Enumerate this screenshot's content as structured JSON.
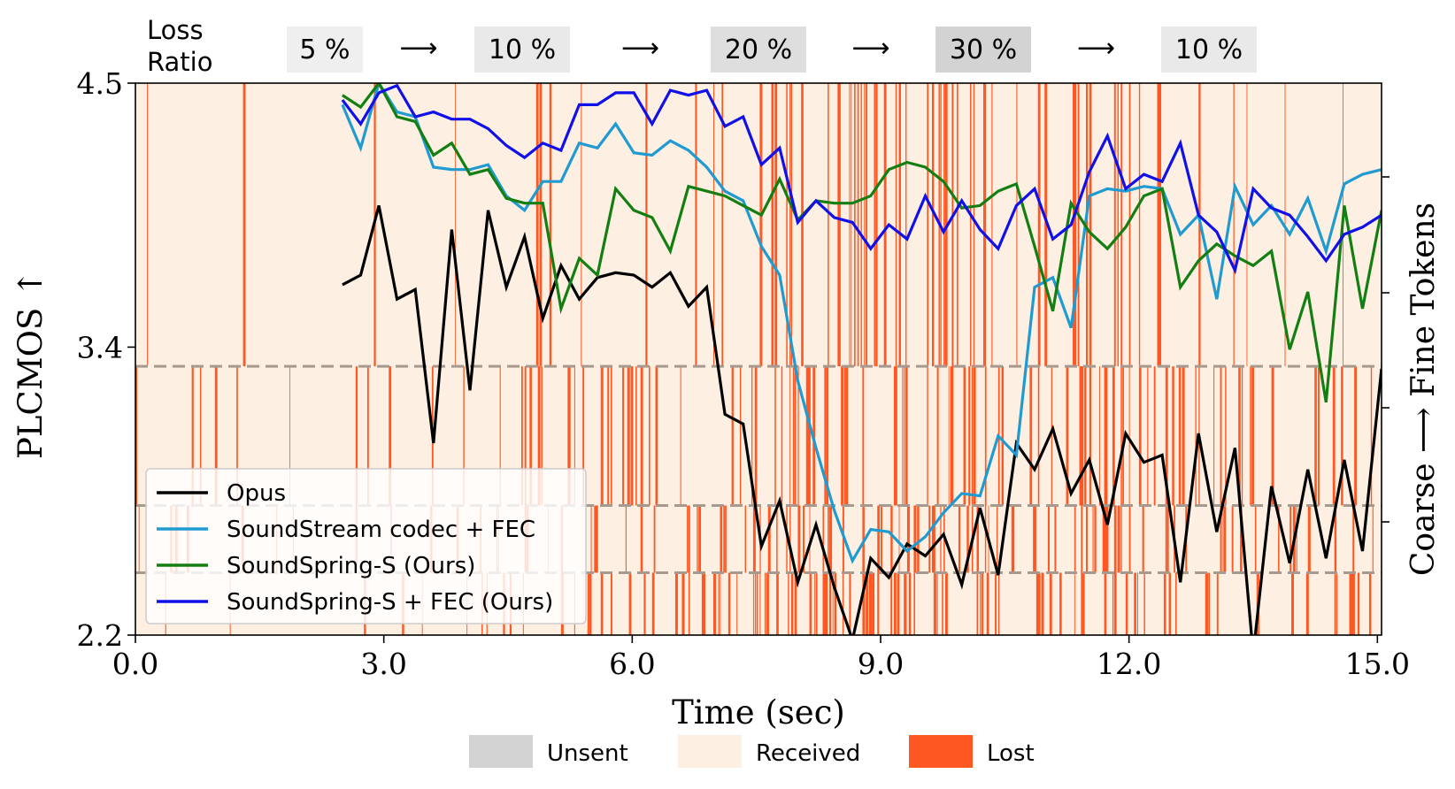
{
  "chart_data": {
    "type": "line",
    "xlabel": "Time (sec)",
    "ylabel": "PLCMOS ↑",
    "right_ylabel": "Coarse  ⟶  Fine Tokens",
    "xlim": [
      0,
      15.05
    ],
    "ylim": [
      2.2,
      4.5
    ],
    "x_ticks": [
      "0.0",
      "3.0",
      "6.0",
      "9.0",
      "12.0",
      "15.0"
    ],
    "x_tick_values": [
      0,
      3,
      6,
      9,
      12,
      15
    ],
    "y_ticks": [
      "2.2",
      "3.4",
      "4.5"
    ],
    "y_tick_values": [
      2.2,
      3.4,
      4.5
    ],
    "loss_ratio": {
      "title": "Loss\nRatio",
      "arrow": "⟶",
      "segments": [
        {
          "label": "5 %",
          "ratio": 0.05
        },
        {
          "label": "10 %",
          "ratio": 0.1
        },
        {
          "label": "20 %",
          "ratio": 0.2
        },
        {
          "label": "30 %",
          "ratio": 0.3
        },
        {
          "label": "10 %",
          "ratio": 0.1
        }
      ]
    },
    "token_band_boundaries": [
      2.46,
      2.74,
      3.32
    ],
    "packet_legend": [
      {
        "label": "Unsent",
        "color": "#d3d3d3"
      },
      {
        "label": "Received",
        "color": "#fdefe1"
      },
      {
        "label": "Lost",
        "color": "#ff5722"
      }
    ],
    "x": [
      2.5,
      2.72,
      2.94,
      3.16,
      3.38,
      3.6,
      3.82,
      4.04,
      4.26,
      4.48,
      4.7,
      4.92,
      5.14,
      5.36,
      5.58,
      5.8,
      6.02,
      6.24,
      6.46,
      6.68,
      6.9,
      7.12,
      7.34,
      7.56,
      7.78,
      8.0,
      8.22,
      8.44,
      8.66,
      8.88,
      9.1,
      9.32,
      9.54,
      9.76,
      9.98,
      10.2,
      10.42,
      10.64,
      10.86,
      11.08,
      11.3,
      11.52,
      11.74,
      11.96,
      12.18,
      12.4,
      12.62,
      12.84,
      13.06,
      13.28,
      13.5,
      13.72,
      13.94,
      14.16,
      14.38,
      14.6,
      14.82,
      15.05
    ],
    "series": [
      {
        "name": "Opus",
        "color": "#000000",
        "values": [
          3.66,
          3.7,
          3.99,
          3.6,
          3.64,
          3.0,
          3.89,
          3.22,
          3.97,
          3.65,
          3.86,
          3.52,
          3.74,
          3.6,
          3.69,
          3.71,
          3.7,
          3.65,
          3.71,
          3.57,
          3.65,
          3.12,
          3.08,
          2.57,
          2.76,
          2.42,
          2.66,
          2.4,
          2.18,
          2.52,
          2.44,
          2.58,
          2.53,
          2.62,
          2.41,
          2.73,
          2.45,
          3.0,
          2.89,
          3.06,
          2.79,
          2.93,
          2.66,
          3.04,
          2.92,
          2.95,
          2.42,
          3.04,
          2.63,
          2.98,
          2.12,
          2.82,
          2.5,
          2.89,
          2.52,
          2.93,
          2.55,
          3.31
        ]
      },
      {
        "name": "SoundStream codec + FEC",
        "color": "#1f9bd1",
        "values": [
          4.41,
          4.23,
          4.5,
          4.38,
          4.36,
          4.15,
          4.14,
          4.14,
          4.16,
          4.03,
          3.97,
          4.09,
          4.09,
          4.25,
          4.23,
          4.33,
          4.21,
          4.2,
          4.26,
          4.22,
          4.15,
          4.05,
          4.01,
          3.82,
          3.7,
          3.26,
          2.98,
          2.72,
          2.51,
          2.64,
          2.63,
          2.55,
          2.61,
          2.71,
          2.79,
          2.78,
          3.03,
          2.95,
          3.65,
          3.69,
          3.48,
          4.03,
          4.06,
          4.05,
          4.07,
          4.06,
          3.87,
          3.95,
          3.6,
          4.07,
          3.91,
          3.99,
          3.87,
          4.02,
          3.8,
          4.08,
          4.12,
          4.14
        ]
      },
      {
        "name": "SoundSpring-S (Ours)",
        "color": "#137f13",
        "values": [
          4.45,
          4.4,
          4.5,
          4.36,
          4.34,
          4.2,
          4.25,
          4.12,
          4.14,
          4.02,
          4.0,
          4.0,
          3.56,
          3.77,
          3.7,
          4.06,
          3.97,
          3.94,
          3.8,
          4.07,
          4.05,
          4.03,
          3.99,
          3.95,
          4.1,
          3.93,
          4.01,
          4.0,
          4.0,
          4.03,
          4.14,
          4.17,
          4.15,
          4.09,
          3.98,
          3.99,
          4.05,
          4.08,
          3.82,
          3.55,
          4.0,
          3.88,
          3.81,
          3.9,
          4.03,
          4.06,
          3.65,
          3.76,
          3.83,
          3.78,
          3.74,
          3.8,
          3.39,
          3.63,
          3.17,
          3.99,
          3.56,
          3.97
        ]
      },
      {
        "name": "SoundSpring-S + FEC (Ours)",
        "color": "#1010e8",
        "values": [
          4.43,
          4.33,
          4.46,
          4.49,
          4.36,
          4.38,
          4.35,
          4.35,
          4.31,
          4.24,
          4.19,
          4.25,
          4.22,
          4.41,
          4.41,
          4.46,
          4.46,
          4.33,
          4.47,
          4.45,
          4.47,
          4.32,
          4.36,
          4.16,
          4.23,
          3.92,
          4.01,
          3.94,
          3.92,
          3.81,
          3.91,
          3.85,
          4.03,
          3.88,
          4.01,
          3.89,
          3.81,
          3.99,
          4.06,
          3.85,
          3.91,
          4.13,
          4.28,
          4.06,
          4.12,
          4.09,
          4.25,
          3.95,
          3.88,
          3.72,
          4.06,
          3.98,
          3.95,
          3.86,
          3.76,
          3.87,
          3.9,
          3.95
        ]
      }
    ]
  }
}
